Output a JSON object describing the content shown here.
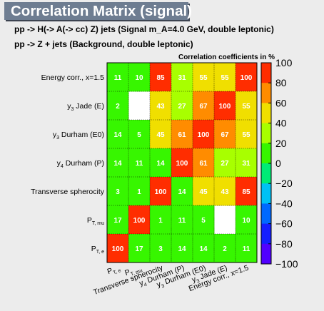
{
  "title": "Correlation Matrix (signal)",
  "subtitle_lines": [
    "pp -> H(-> A(-> cc)  Z) jets (Signal m_A=4.0 GeV, double leptonic)",
    "pp -> Z + jets (Background, double leptonic)"
  ],
  "chart_data": {
    "type": "heatmap",
    "z_label": "Correlation coefficients in %",
    "z_range": [
      -100,
      100
    ],
    "z_ticks": [
      100,
      80,
      60,
      40,
      20,
      0,
      -20,
      -40,
      -60,
      -80,
      -100
    ],
    "z_tick_labels": [
      "100",
      "80",
      "60",
      "40",
      "20",
      "0",
      "−20",
      "−40",
      "−60",
      "−80",
      "−100"
    ],
    "variables": [
      {
        "label": "P",
        "sub": "T, e"
      },
      {
        "label": "P",
        "sub": "T, mu"
      },
      {
        "label": "Transverse spherocity",
        "sub": ""
      },
      {
        "label": "y",
        "sub": "4",
        "suffix": " Durham (P)"
      },
      {
        "label": "y",
        "sub": "3",
        "suffix": " Durham (E0)"
      },
      {
        "label": "y",
        "sub": "3",
        "suffix": " Jade (E)"
      },
      {
        "label": "Energy corr., x=1.5",
        "sub": ""
      }
    ],
    "row_order_top_to_bottom": [
      6,
      5,
      4,
      3,
      2,
      1,
      0
    ],
    "matrix": [
      [
        100,
        17,
        3,
        14,
        14,
        2,
        11
      ],
      [
        17,
        100,
        1,
        11,
        5,
        0,
        10
      ],
      [
        3,
        1,
        100,
        14,
        45,
        43,
        85
      ],
      [
        14,
        11,
        14,
        100,
        61,
        27,
        31
      ],
      [
        14,
        5,
        45,
        61,
        100,
        67,
        55
      ],
      [
        2,
        0,
        43,
        27,
        67,
        100,
        55
      ],
      [
        11,
        10,
        85,
        31,
        55,
        55,
        100
      ]
    ],
    "hide_zero": true
  }
}
